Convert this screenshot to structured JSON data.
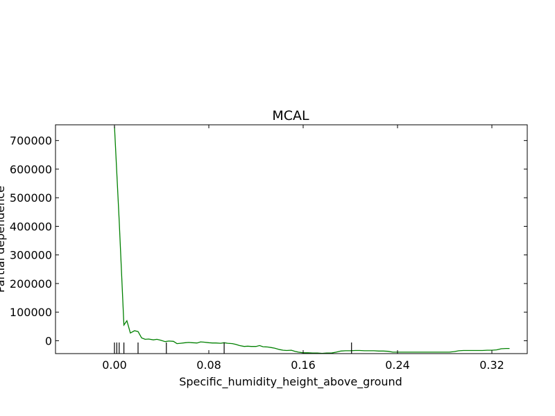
{
  "chart_data": {
    "type": "line",
    "title": "MCAL",
    "xlabel": "Specific_humidity_height_above_ground",
    "ylabel": "Partial dependence",
    "xlim": [
      -0.05,
      0.35
    ],
    "ylim": [
      -45000,
      755000
    ],
    "xticks": [
      "0.00",
      "0.08",
      "0.16",
      "0.24",
      "0.32"
    ],
    "xtick_values": [
      0.0,
      0.08,
      0.16,
      0.24,
      0.32
    ],
    "yticks": [
      "0",
      "100000",
      "200000",
      "300000",
      "400000",
      "500000",
      "600000",
      "700000"
    ],
    "ytick_values": [
      0,
      100000,
      200000,
      300000,
      400000,
      500000,
      600000,
      700000
    ],
    "grid": false,
    "series": [
      {
        "color": "#008000",
        "x": [
          0.0,
          0.004,
          0.008,
          0.0105,
          0.0135,
          0.017,
          0.02,
          0.023,
          0.026,
          0.029,
          0.033,
          0.036,
          0.039,
          0.043,
          0.046,
          0.05,
          0.053,
          0.056,
          0.06,
          0.063,
          0.066,
          0.07,
          0.073,
          0.076,
          0.08,
          0.083,
          0.086,
          0.09,
          0.093,
          0.096,
          0.1,
          0.103,
          0.106,
          0.11,
          0.113,
          0.116,
          0.12,
          0.123,
          0.126,
          0.13,
          0.133,
          0.136,
          0.14,
          0.143,
          0.146,
          0.15,
          0.153,
          0.156,
          0.16,
          0.164,
          0.168,
          0.172,
          0.176,
          0.18,
          0.184,
          0.188,
          0.192,
          0.196,
          0.2,
          0.204,
          0.208,
          0.212,
          0.216,
          0.22,
          0.224,
          0.228,
          0.232,
          0.236,
          0.24,
          0.244,
          0.248,
          0.252,
          0.256,
          0.26,
          0.264,
          0.268,
          0.272,
          0.276,
          0.28,
          0.284,
          0.288,
          0.292,
          0.296,
          0.3,
          0.304,
          0.308,
          0.312,
          0.316,
          0.32,
          0.324,
          0.328,
          0.332,
          0.335
        ],
        "y": [
          750000,
          420000,
          55000,
          70000,
          27000,
          35000,
          32000,
          10000,
          5000,
          6000,
          3000,
          5000,
          2000,
          -3000,
          -1000,
          -2000,
          -10000,
          -9000,
          -7000,
          -6000,
          -7000,
          -8000,
          -4000,
          -5000,
          -7000,
          -8000,
          -8000,
          -9000,
          -7000,
          -9000,
          -10000,
          -13000,
          -17000,
          -20000,
          -19000,
          -20000,
          -20000,
          -17000,
          -21000,
          -22000,
          -24000,
          -26000,
          -31000,
          -33000,
          -34000,
          -33000,
          -37000,
          -40000,
          -42000,
          -42000,
          -43000,
          -43000,
          -44000,
          -43000,
          -43000,
          -40000,
          -36000,
          -35000,
          -35000,
          -34000,
          -34000,
          -35000,
          -35000,
          -35000,
          -36000,
          -36000,
          -37000,
          -40000,
          -40000,
          -40000,
          -40000,
          -40000,
          -40000,
          -40000,
          -40000,
          -40000,
          -40000,
          -40000,
          -40000,
          -40000,
          -38000,
          -35000,
          -34000,
          -34000,
          -34000,
          -34000,
          -34000,
          -33000,
          -33000,
          -32000,
          -28000,
          -27000,
          -27000
        ]
      }
    ],
    "rug_x": [
      0.0,
      0.002,
      0.004,
      0.008,
      0.02,
      0.044,
      0.093,
      0.201
    ]
  }
}
